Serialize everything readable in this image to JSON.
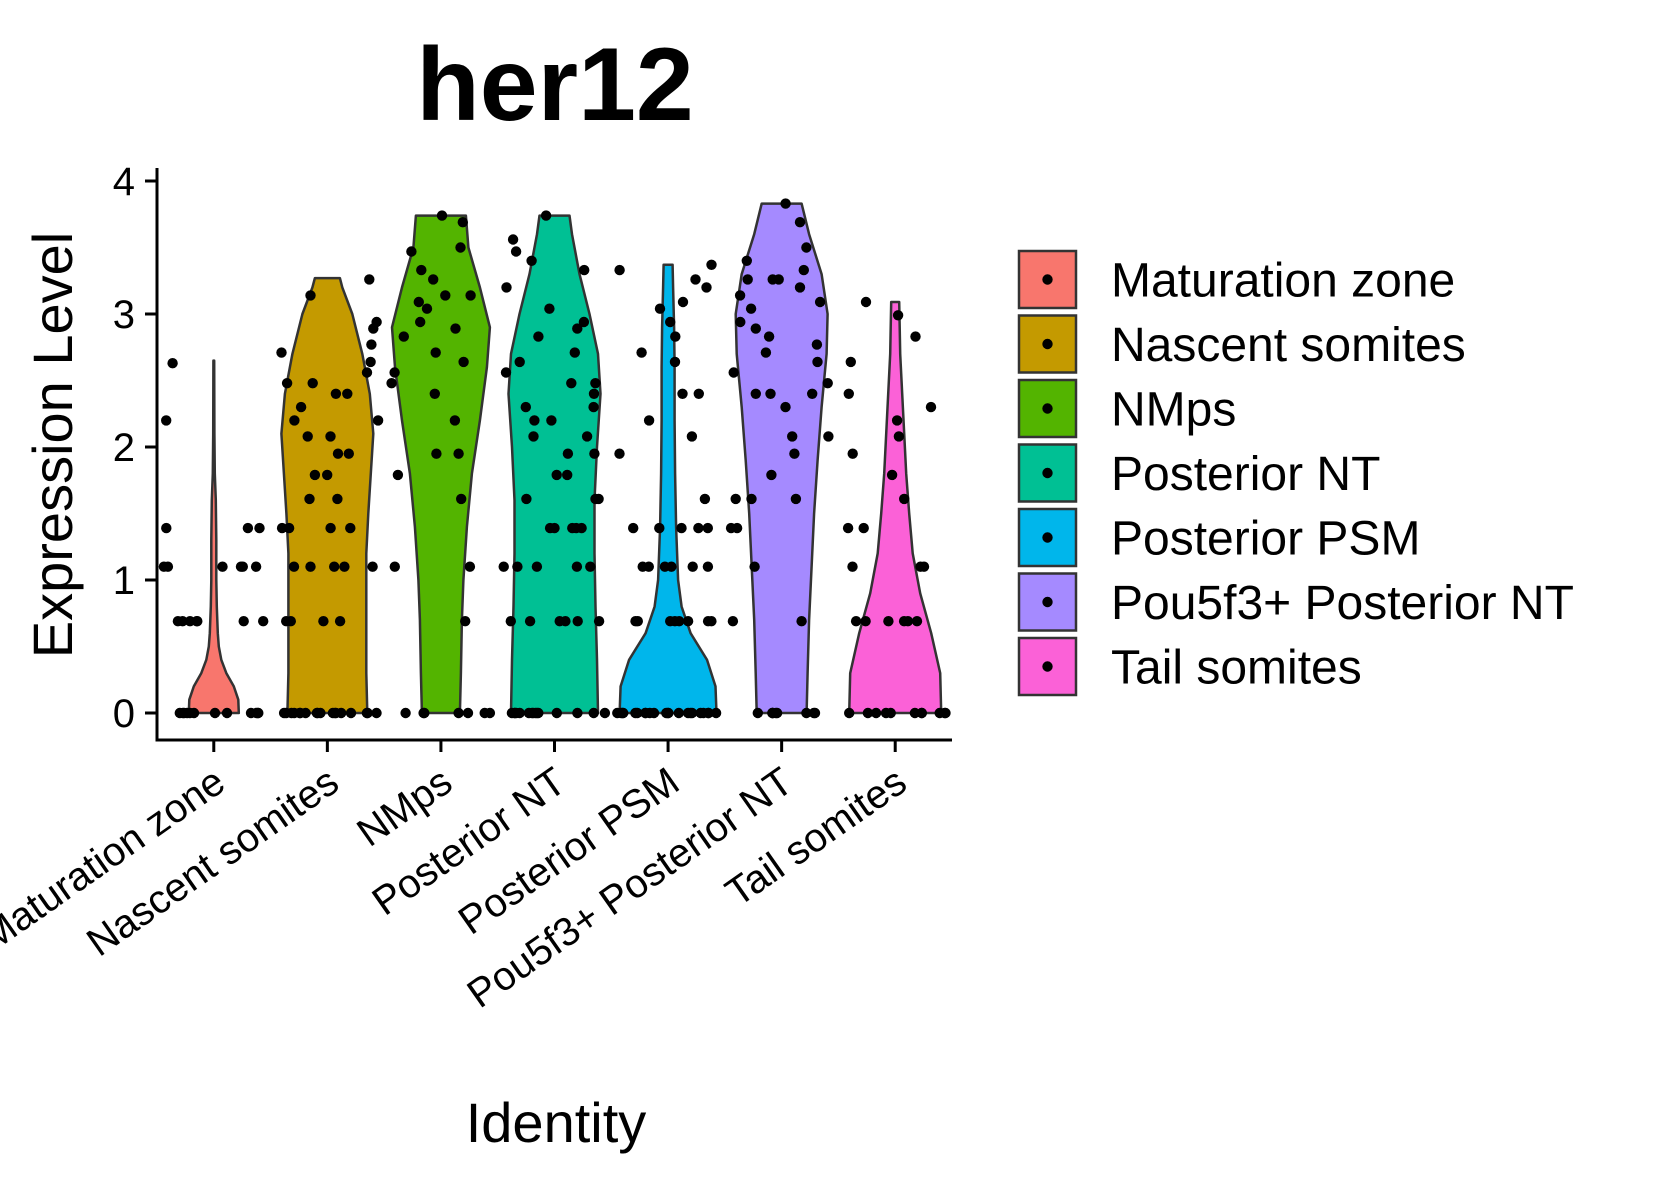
{
  "chart_data": {
    "type": "violin",
    "title": "her12",
    "xlabel": "Identity",
    "ylabel": "Expression Level",
    "ylim": [
      -0.15,
      4.05
    ],
    "yticks": [
      0,
      1,
      2,
      3,
      4
    ],
    "categories": [
      "Maturation zone",
      "Nascent somites",
      "NMps",
      "Posterior NT",
      "Posterior PSM",
      "Pou5f3+ Posterior NT",
      "Tail somites"
    ],
    "legend": {
      "position": "right",
      "entries": [
        "Maturation zone",
        "Nascent somites",
        "NMps",
        "Posterior NT",
        "Posterior PSM",
        "Pou5f3+ Posterior NT",
        "Tail somites"
      ]
    },
    "colors": [
      "#F8766D",
      "#C49A00",
      "#53B400",
      "#00C094",
      "#00B6EB",
      "#A58AFF",
      "#FB61D7"
    ],
    "violins": [
      {
        "name": "Maturation zone",
        "max": 2.65,
        "profile": [
          [
            0.0,
            0.5
          ],
          [
            0.1,
            0.49
          ],
          [
            0.2,
            0.4
          ],
          [
            0.3,
            0.25
          ],
          [
            0.4,
            0.15
          ],
          [
            0.5,
            0.1
          ],
          [
            0.6,
            0.08
          ],
          [
            0.8,
            0.06
          ],
          [
            1.0,
            0.05
          ],
          [
            1.3,
            0.05
          ],
          [
            1.6,
            0.04
          ],
          [
            1.8,
            0.02
          ],
          [
            2.1,
            0.012
          ],
          [
            2.65,
            0.008
          ]
        ],
        "values": [
          2.63,
          1.39,
          1.39,
          1.39,
          1.1,
          1.1,
          1.1,
          1.1,
          1.1,
          1.1,
          0.69,
          0.69,
          0.69,
          0.69,
          0.69,
          0.69,
          0.69,
          2.2,
          0,
          0,
          0,
          0,
          0,
          0,
          0,
          0,
          0,
          0,
          0,
          0
        ]
      },
      {
        "name": "Nascent somites",
        "max": 3.27,
        "profile": [
          [
            0.0,
            0.8
          ],
          [
            0.3,
            0.78
          ],
          [
            0.6,
            0.78
          ],
          [
            0.9,
            0.78
          ],
          [
            1.2,
            0.78
          ],
          [
            1.5,
            0.82
          ],
          [
            1.8,
            0.87
          ],
          [
            2.1,
            0.92
          ],
          [
            2.4,
            0.85
          ],
          [
            2.7,
            0.7
          ],
          [
            3.0,
            0.5
          ],
          [
            3.2,
            0.3
          ],
          [
            3.27,
            0.25
          ]
        ],
        "values": [
          3.26,
          3.14,
          2.94,
          2.89,
          2.77,
          2.71,
          2.64,
          2.56,
          2.48,
          2.48,
          2.4,
          2.4,
          2.3,
          2.2,
          2.2,
          2.08,
          2.08,
          1.95,
          1.95,
          1.79,
          1.79,
          1.61,
          1.61,
          1.39,
          1.39,
          1.39,
          1.39,
          1.1,
          1.1,
          1.1,
          1.1,
          1.1,
          0.69,
          0.69,
          0.69,
          0.69,
          0,
          0,
          0,
          0,
          0,
          0,
          0,
          0,
          0,
          0,
          0,
          0,
          0,
          0,
          0,
          0,
          0,
          0
        ]
      },
      {
        "name": "NMps",
        "max": 3.74,
        "profile": [
          [
            0.0,
            0.38
          ],
          [
            0.3,
            0.4
          ],
          [
            0.7,
            0.42
          ],
          [
            1.0,
            0.45
          ],
          [
            1.4,
            0.52
          ],
          [
            1.8,
            0.62
          ],
          [
            2.2,
            0.78
          ],
          [
            2.6,
            0.92
          ],
          [
            2.9,
            0.98
          ],
          [
            3.2,
            0.78
          ],
          [
            3.5,
            0.55
          ],
          [
            3.74,
            0.5
          ]
        ],
        "values": [
          3.74,
          3.69,
          3.5,
          3.47,
          3.33,
          3.26,
          3.14,
          3.14,
          3.09,
          3.04,
          2.94,
          2.89,
          2.83,
          2.71,
          2.64,
          2.56,
          2.48,
          2.4,
          2.2,
          1.95,
          1.95,
          1.79,
          1.61,
          1.1,
          1.1,
          0.69,
          0,
          0,
          0,
          0,
          0,
          0,
          0
        ]
      },
      {
        "name": "Posterior NT",
        "max": 3.74,
        "profile": [
          [
            0.0,
            0.87
          ],
          [
            0.4,
            0.85
          ],
          [
            0.8,
            0.82
          ],
          [
            1.2,
            0.8
          ],
          [
            1.6,
            0.8
          ],
          [
            2.0,
            0.85
          ],
          [
            2.4,
            0.92
          ],
          [
            2.7,
            0.87
          ],
          [
            3.0,
            0.7
          ],
          [
            3.3,
            0.5
          ],
          [
            3.6,
            0.35
          ],
          [
            3.74,
            0.3
          ]
        ],
        "values": [
          3.74,
          3.56,
          3.47,
          3.4,
          3.33,
          3.2,
          3.04,
          2.94,
          2.89,
          2.83,
          2.71,
          2.64,
          2.56,
          2.48,
          2.48,
          2.4,
          2.3,
          2.3,
          2.2,
          2.2,
          2.08,
          2.08,
          1.95,
          1.95,
          1.79,
          1.79,
          1.61,
          1.61,
          1.61,
          1.39,
          1.39,
          1.39,
          1.39,
          1.39,
          1.1,
          1.1,
          1.1,
          1.1,
          1.1,
          0.69,
          0.69,
          0.69,
          0.69,
          0.69,
          0.69,
          0,
          0,
          0,
          0,
          0,
          0,
          0,
          0,
          0,
          0,
          0,
          0,
          0,
          0,
          0
        ]
      },
      {
        "name": "Posterior PSM",
        "max": 3.37,
        "profile": [
          [
            0.0,
            0.97
          ],
          [
            0.2,
            0.95
          ],
          [
            0.4,
            0.78
          ],
          [
            0.6,
            0.45
          ],
          [
            0.8,
            0.27
          ],
          [
            1.0,
            0.2
          ],
          [
            1.4,
            0.16
          ],
          [
            1.8,
            0.14
          ],
          [
            2.2,
            0.13
          ],
          [
            2.6,
            0.13
          ],
          [
            2.9,
            0.12
          ],
          [
            3.2,
            0.1
          ],
          [
            3.37,
            0.09
          ]
        ],
        "values": [
          3.37,
          3.33,
          3.26,
          3.2,
          3.09,
          3.04,
          2.94,
          2.83,
          2.71,
          2.64,
          2.4,
          2.4,
          2.2,
          2.08,
          1.95,
          1.61,
          1.39,
          1.39,
          1.39,
          1.39,
          1.39,
          1.1,
          1.1,
          1.1,
          1.1,
          1.1,
          1.1,
          0.69,
          0.69,
          0.69,
          0.69,
          0.69,
          0.69,
          0.69,
          0.69,
          0,
          0,
          0,
          0,
          0,
          0,
          0,
          0,
          0,
          0,
          0,
          0,
          0,
          0,
          0,
          0,
          0,
          0,
          0,
          0,
          0,
          0
        ]
      },
      {
        "name": "Pou5f3+ Posterior NT",
        "max": 3.83,
        "profile": [
          [
            0.0,
            0.5
          ],
          [
            0.3,
            0.52
          ],
          [
            0.7,
            0.55
          ],
          [
            1.1,
            0.6
          ],
          [
            1.5,
            0.65
          ],
          [
            1.9,
            0.72
          ],
          [
            2.3,
            0.8
          ],
          [
            2.7,
            0.9
          ],
          [
            3.0,
            0.92
          ],
          [
            3.3,
            0.8
          ],
          [
            3.6,
            0.55
          ],
          [
            3.83,
            0.4
          ]
        ],
        "values": [
          3.83,
          3.69,
          3.5,
          3.4,
          3.33,
          3.26,
          3.26,
          3.26,
          3.2,
          3.14,
          3.09,
          3.04,
          2.94,
          2.89,
          2.83,
          2.77,
          2.71,
          2.64,
          2.56,
          2.48,
          2.4,
          2.4,
          2.4,
          2.3,
          2.08,
          2.08,
          1.95,
          1.79,
          1.61,
          1.61,
          1.61,
          1.39,
          1.39,
          1.1,
          0.69,
          0.69,
          0,
          0,
          0,
          0,
          0,
          0,
          0,
          0,
          0
        ]
      },
      {
        "name": "Tail somites",
        "max": 3.09,
        "profile": [
          [
            0.0,
            0.92
          ],
          [
            0.3,
            0.9
          ],
          [
            0.6,
            0.72
          ],
          [
            0.9,
            0.5
          ],
          [
            1.2,
            0.35
          ],
          [
            1.5,
            0.28
          ],
          [
            1.8,
            0.22
          ],
          [
            2.1,
            0.18
          ],
          [
            2.4,
            0.14
          ],
          [
            2.7,
            0.1
          ],
          [
            2.9,
            0.09
          ],
          [
            3.09,
            0.08
          ]
        ],
        "values": [
          3.09,
          2.99,
          2.83,
          2.64,
          2.4,
          2.3,
          2.2,
          2.08,
          1.95,
          1.79,
          1.61,
          1.39,
          1.39,
          1.1,
          1.1,
          1.1,
          0.69,
          0.69,
          0.69,
          0.69,
          0.69,
          0.69,
          0,
          0,
          0,
          0,
          0,
          0,
          0,
          0,
          0,
          0,
          0
        ]
      }
    ]
  }
}
